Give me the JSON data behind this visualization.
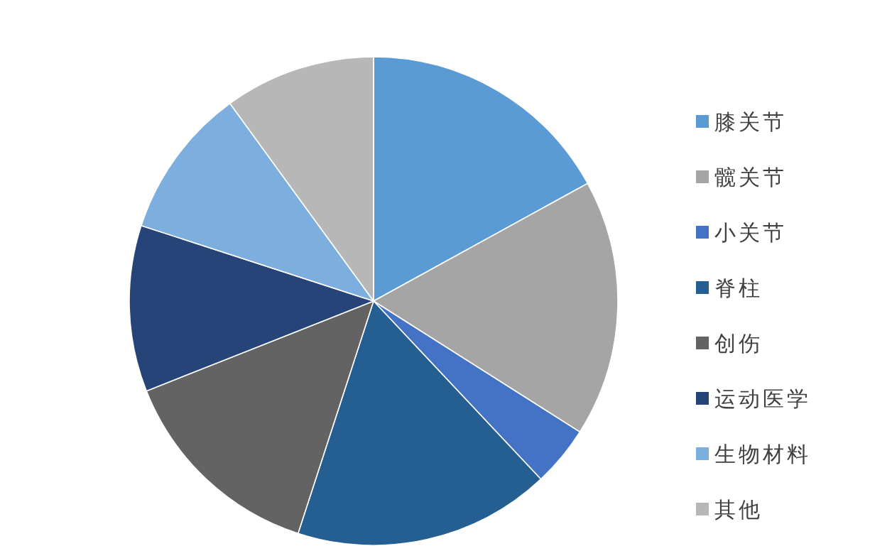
{
  "chart_data": {
    "type": "pie",
    "categories": [
      "膝关节",
      "髋关节",
      "小关节",
      "脊柱",
      "创伤",
      "运动医学",
      "生物材料",
      "其他"
    ],
    "values": [
      17,
      17,
      4,
      17,
      14,
      11,
      10,
      10
    ],
    "colors": [
      "#5b9bd5",
      "#a5a5a5",
      "#4472c4",
      "#255e91",
      "#636363",
      "#264478",
      "#7cafdd",
      "#b7b7b7"
    ],
    "legend": "right"
  }
}
